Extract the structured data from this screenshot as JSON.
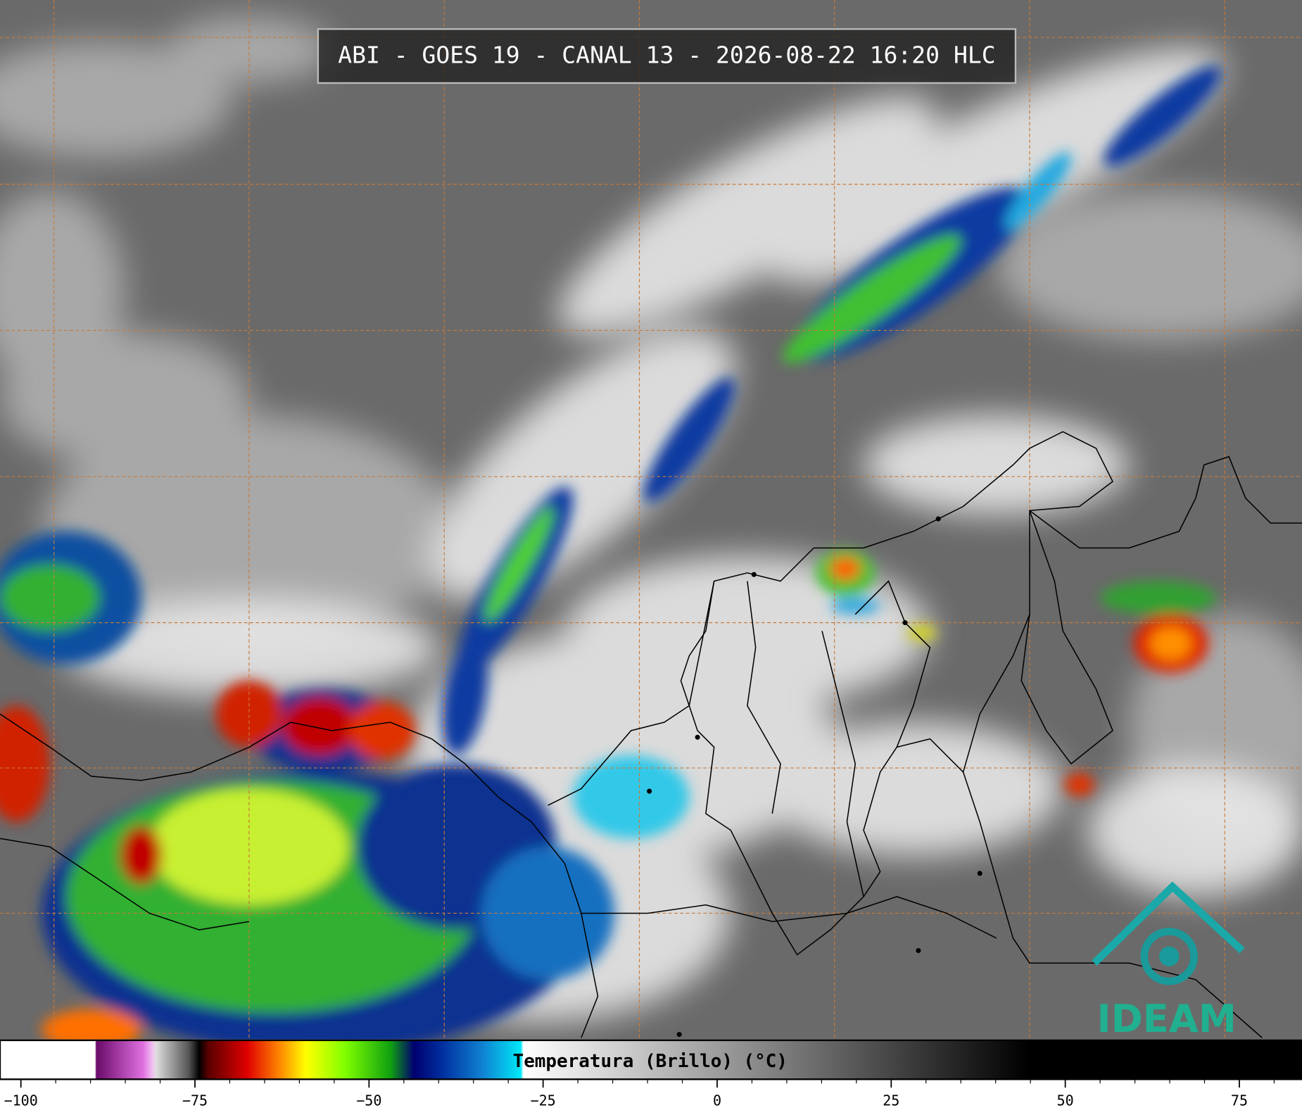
{
  "header": {
    "title": "ABI - GOES 19 - CANAL 13 - 2026-08-22 16:20 HLC"
  },
  "logo": {
    "text": "IDEAM"
  },
  "chart_data": {
    "type": "colorbar",
    "label": "Temperatura (Brillo) (°C)",
    "xlim": [
      -103,
      84
    ],
    "xticks": [
      {
        "value": -100,
        "label": "−100"
      },
      {
        "value": -75,
        "label": "−75"
      },
      {
        "value": -50,
        "label": "−50"
      },
      {
        "value": -25,
        "label": "−25"
      },
      0,
      25,
      50,
      75
    ]
  }
}
